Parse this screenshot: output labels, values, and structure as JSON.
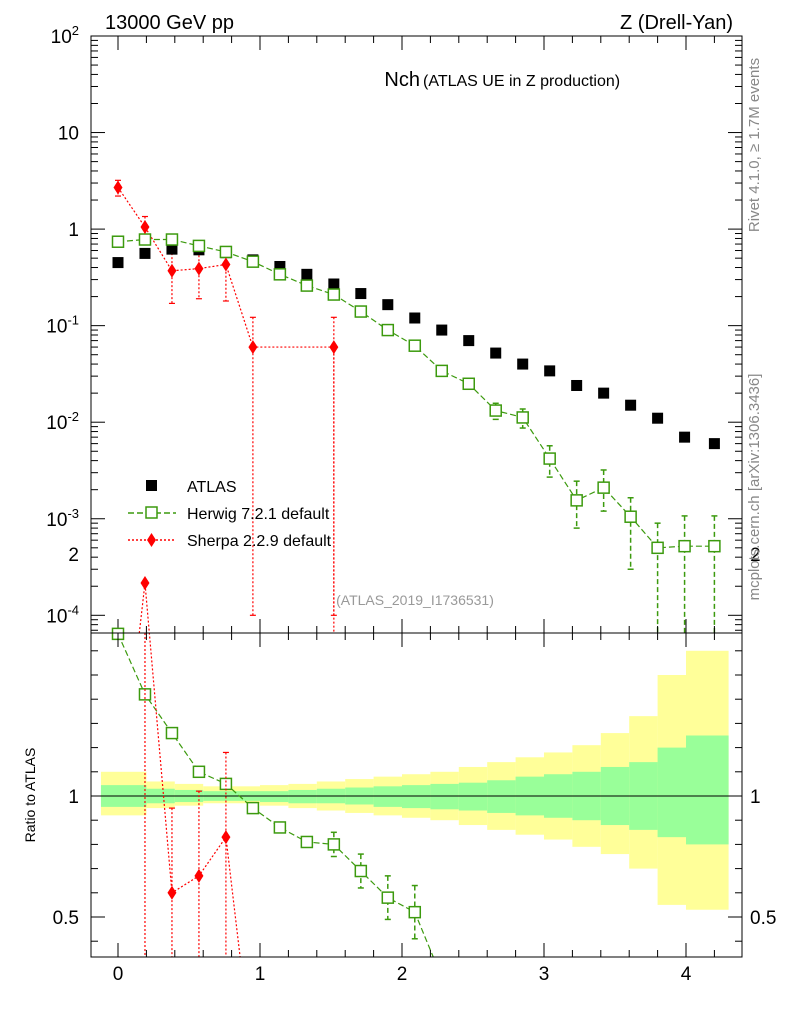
{
  "header": {
    "energy_label": "13000 GeV pp",
    "process_label": "Z (Drell-Yan)",
    "title_main": "Nch",
    "title_sub": "(ATLAS UE in Z production)",
    "analysis_id": "(ATLAS_2019_I1736531)",
    "side_rivet": "Rivet 4.1.0, ≥ 1.7M events",
    "side_mcplots": "mcplots.cern.ch [arXiv:1306.3436]"
  },
  "ratio_axis_label": "Ratio to ATLAS",
  "legend": [
    {
      "label": "ATLAS",
      "color": "#000000",
      "marker": "filled-square"
    },
    {
      "label": "Herwig 7.2.1 default",
      "color": "#3c9a0e",
      "marker": "open-square"
    },
    {
      "label": "Sherpa 2.2.9 default",
      "color": "#ff0000",
      "marker": "filled-diamond"
    }
  ],
  "main_y_tick_labels": [
    "10^2",
    "10",
    "1",
    "10^-1",
    "10^-2",
    "10^-3",
    "10^-4"
  ],
  "ratio_y_tick_labels": [
    "2",
    "1",
    "0.5"
  ],
  "x_tick_labels": [
    "0",
    "1",
    "2",
    "3",
    "4"
  ],
  "chart_data": {
    "type": "scatter",
    "title": "Nch (ATLAS UE in Z production)",
    "xlabel": "",
    "ylabel": "",
    "xlim": [
      -0.2,
      4.4
    ],
    "ylim": [
      0.0001,
      100
    ],
    "yscale": "log",
    "ratio_ylim": [
      0.35,
      2.3
    ],
    "x": [
      0,
      0.19,
      0.38,
      0.57,
      0.76,
      0.95,
      1.14,
      1.33,
      1.52,
      1.71,
      1.9,
      2.09,
      2.28,
      2.47,
      2.66,
      2.85,
      3.04,
      3.23,
      3.42,
      3.61,
      3.8,
      3.99,
      4.2
    ],
    "series": [
      {
        "name": "ATLAS",
        "values": [
          0.45,
          0.56,
          0.62,
          0.61,
          0.57,
          0.48,
          0.41,
          0.34,
          0.27,
          0.215,
          0.165,
          0.12,
          0.09,
          0.07,
          0.052,
          0.04,
          0.034,
          0.024,
          0.02,
          0.015,
          0.011,
          0.007,
          0.006
        ]
      },
      {
        "name": "Herwig 7.2.1 default",
        "values": [
          0.74,
          0.78,
          0.78,
          0.67,
          0.58,
          0.46,
          0.34,
          0.26,
          0.21,
          0.14,
          0.09,
          0.062,
          0.034,
          0.025,
          0.0132,
          0.0112,
          0.0042,
          0.00155,
          0.0021,
          0.00105,
          0.0005,
          0.00052,
          0.00052
        ],
        "err_low": [
          0.02,
          0.02,
          0.02,
          0.02,
          0.02,
          0.02,
          0.015,
          0.012,
          0.01,
          0.008,
          0.005,
          0.004,
          0.003,
          0.002,
          0.0025,
          0.0025,
          0.0015,
          0.00075,
          0.0009,
          0.00075,
          0.00049,
          0.00051,
          0.00051
        ],
        "err_high": [
          0.02,
          0.02,
          0.02,
          0.02,
          0.02,
          0.02,
          0.015,
          0.012,
          0.01,
          0.008,
          0.005,
          0.004,
          0.003,
          0.002,
          0.0025,
          0.0025,
          0.0015,
          0.0009,
          0.0011,
          0.0006,
          0.0004,
          0.00055,
          0.00055
        ]
      },
      {
        "name": "Sherpa 2.2.9 default",
        "x": [
          0,
          0.19,
          0.38,
          0.57,
          0.76,
          0.95,
          1.52
        ],
        "values": [
          2.7,
          1.05,
          0.37,
          0.39,
          0.43,
          0.06,
          0.06
        ],
        "err_low": [
          0.5,
          0.3,
          0.2,
          0.2,
          0.25,
          0.0599,
          0.0599
        ],
        "err_high": [
          0.5,
          0.3,
          0.25,
          0.2,
          0.1,
          0.062,
          0.062
        ]
      }
    ],
    "ratio": {
      "ylabel": "Ratio to ATLAS",
      "herwig": [
        1.67,
        1.42,
        1.26,
        1.1,
        1.05,
        0.95,
        0.87,
        0.81,
        0.8,
        0.69,
        0.58,
        0.52,
        0.32
      ],
      "sherpa_x": [
        0.19,
        0.38,
        0.57,
        0.76
      ],
      "sherpa": [
        1.88,
        0.6,
        0.67,
        0.83
      ],
      "band_inner": [
        {
          "from": -0.12,
          "to": 0.2,
          "lo": 0.955,
          "hi": 1.045
        },
        {
          "from": 0.2,
          "to": 0.4,
          "lo": 0.97,
          "hi": 1.03
        },
        {
          "from": 0.4,
          "to": 0.6,
          "lo": 0.975,
          "hi": 1.025
        },
        {
          "from": 0.6,
          "to": 1.0,
          "lo": 0.98,
          "hi": 1.02
        },
        {
          "from": 1.0,
          "to": 1.2,
          "lo": 0.975,
          "hi": 1.02
        },
        {
          "from": 1.2,
          "to": 1.4,
          "lo": 0.97,
          "hi": 1.025
        },
        {
          "from": 1.4,
          "to": 1.6,
          "lo": 0.97,
          "hi": 1.03
        },
        {
          "from": 1.6,
          "to": 1.8,
          "lo": 0.965,
          "hi": 1.035
        },
        {
          "from": 1.8,
          "to": 2.0,
          "lo": 0.955,
          "hi": 1.04
        },
        {
          "from": 2.0,
          "to": 2.2,
          "lo": 0.95,
          "hi": 1.045
        },
        {
          "from": 2.2,
          "to": 2.4,
          "lo": 0.945,
          "hi": 1.05
        },
        {
          "from": 2.4,
          "to": 2.6,
          "lo": 0.94,
          "hi": 1.055
        },
        {
          "from": 2.6,
          "to": 2.8,
          "lo": 0.93,
          "hi": 1.065
        },
        {
          "from": 2.8,
          "to": 3.0,
          "lo": 0.92,
          "hi": 1.08
        },
        {
          "from": 3.0,
          "to": 3.2,
          "lo": 0.91,
          "hi": 1.09
        },
        {
          "from": 3.2,
          "to": 3.4,
          "lo": 0.9,
          "hi": 1.1
        },
        {
          "from": 3.4,
          "to": 3.6,
          "lo": 0.88,
          "hi": 1.12
        },
        {
          "from": 3.6,
          "to": 3.8,
          "lo": 0.86,
          "hi": 1.14
        },
        {
          "from": 3.8,
          "to": 4.0,
          "lo": 0.83,
          "hi": 1.2
        },
        {
          "from": 4.0,
          "to": 4.3,
          "lo": 0.8,
          "hi": 1.25
        }
      ],
      "band_outer": [
        {
          "from": -0.12,
          "to": 0.2,
          "lo": 0.92,
          "hi": 1.1
        },
        {
          "from": 0.2,
          "to": 0.4,
          "lo": 0.95,
          "hi": 1.06
        },
        {
          "from": 0.4,
          "to": 0.6,
          "lo": 0.96,
          "hi": 1.05
        },
        {
          "from": 0.6,
          "to": 1.0,
          "lo": 0.97,
          "hi": 1.04
        },
        {
          "from": 1.0,
          "to": 1.2,
          "lo": 0.96,
          "hi": 1.045
        },
        {
          "from": 1.2,
          "to": 1.4,
          "lo": 0.95,
          "hi": 1.05
        },
        {
          "from": 1.4,
          "to": 1.6,
          "lo": 0.94,
          "hi": 1.06
        },
        {
          "from": 1.6,
          "to": 1.8,
          "lo": 0.93,
          "hi": 1.07
        },
        {
          "from": 1.8,
          "to": 2.0,
          "lo": 0.92,
          "hi": 1.08
        },
        {
          "from": 2.0,
          "to": 2.2,
          "lo": 0.91,
          "hi": 1.09
        },
        {
          "from": 2.2,
          "to": 2.4,
          "lo": 0.9,
          "hi": 1.1
        },
        {
          "from": 2.4,
          "to": 2.6,
          "lo": 0.88,
          "hi": 1.12
        },
        {
          "from": 2.6,
          "to": 2.8,
          "lo": 0.86,
          "hi": 1.14
        },
        {
          "from": 2.8,
          "to": 3.0,
          "lo": 0.84,
          "hi": 1.16
        },
        {
          "from": 3.0,
          "to": 3.2,
          "lo": 0.82,
          "hi": 1.18
        },
        {
          "from": 3.2,
          "to": 3.4,
          "lo": 0.79,
          "hi": 1.21
        },
        {
          "from": 3.4,
          "to": 3.6,
          "lo": 0.76,
          "hi": 1.26
        },
        {
          "from": 3.6,
          "to": 3.8,
          "lo": 0.7,
          "hi": 1.33
        },
        {
          "from": 3.8,
          "to": 4.0,
          "lo": 0.55,
          "hi": 1.5
        },
        {
          "from": 4.0,
          "to": 4.3,
          "lo": 0.53,
          "hi": 1.6
        }
      ]
    }
  }
}
